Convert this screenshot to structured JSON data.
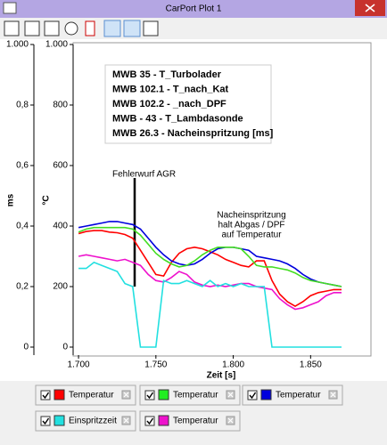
{
  "window": {
    "title": "CarPort Plot 1"
  },
  "chart_data": {
    "type": "line",
    "legend": "top-left",
    "y_label": "°C",
    "y2_label": "ms",
    "x_label": "Zeit [s]",
    "annotations": [
      {
        "lines": [
          "Fehlerwurf AGR"
        ]
      },
      {
        "lines": [
          "Nacheinspritzung",
          "halt Abgas / DPF",
          "auf Temperatur"
        ]
      }
    ],
    "xlim": [
      1.6965,
      1.889
    ],
    "xticks": [
      {
        "value": 1.7,
        "label": "1.700"
      },
      {
        "value": 1.75,
        "label": "1.750"
      },
      {
        "value": 1.8,
        "label": "1.800"
      },
      {
        "value": 1.85,
        "label": "1.850"
      }
    ],
    "ylim": [
      -25,
      1000
    ],
    "yticks": [
      0,
      200,
      400,
      600,
      800,
      {
        "value": 1000,
        "label": "1.000"
      }
    ],
    "y2lim": [
      -0.025,
      1.0
    ],
    "y2ticks": [
      0,
      {
        "value": 0.2,
        "label": "0,2"
      },
      {
        "value": 0.4,
        "label": "0,4"
      },
      {
        "value": 0.6,
        "label": "0,6"
      },
      {
        "value": 0.8,
        "label": "0,8"
      },
      {
        "value": 1,
        "label": "1.000"
      }
    ],
    "x": [
      1.7,
      1.705,
      1.71,
      1.715,
      1.72,
      1.725,
      1.73,
      1.735,
      1.74,
      1.745,
      1.75,
      1.755,
      1.76,
      1.765,
      1.77,
      1.775,
      1.78,
      1.785,
      1.79,
      1.795,
      1.8,
      1.805,
      1.81,
      1.815,
      1.82,
      1.825,
      1.83,
      1.835,
      1.84,
      1.845,
      1.85,
      1.855,
      1.86,
      1.865,
      1.87
    ],
    "series": [
      {
        "name": "MWB 35 - T_Turbolader",
        "color": "#ff0000",
        "values": [
          375,
          382,
          385,
          385,
          380,
          378,
          372,
          360,
          320,
          280,
          240,
          235,
          280,
          310,
          325,
          330,
          325,
          315,
          305,
          290,
          280,
          270,
          265,
          285,
          285,
          220,
          175,
          150,
          135,
          150,
          170,
          180,
          185,
          190,
          190
        ]
      },
      {
        "name": "MWB 102.1 - T_nach_Kat",
        "color": "#0000dd",
        "values": [
          395,
          400,
          405,
          410,
          415,
          415,
          410,
          405,
          390,
          360,
          330,
          305,
          285,
          275,
          270,
          275,
          290,
          310,
          325,
          330,
          330,
          325,
          320,
          300,
          295,
          290,
          285,
          275,
          260,
          240,
          225,
          215,
          210,
          205,
          200
        ]
      },
      {
        "name": "MWB 102.2 - _nach_DPF",
        "color": "#44dd22",
        "values": [
          380,
          390,
          395,
          395,
          395,
          395,
          395,
          390,
          370,
          340,
          310,
          290,
          275,
          265,
          270,
          285,
          305,
          320,
          330,
          330,
          330,
          325,
          300,
          270,
          265,
          265,
          260,
          255,
          245,
          230,
          220,
          215,
          210,
          205,
          200
        ]
      },
      {
        "name": "MWB - 43  - T_Lambdasonde",
        "color": "#ee11cc",
        "values": [
          300,
          305,
          300,
          295,
          290,
          285,
          290,
          280,
          270,
          240,
          220,
          215,
          230,
          250,
          240,
          215,
          205,
          200,
          205,
          200,
          205,
          210,
          210,
          200,
          195,
          190,
          160,
          140,
          125,
          130,
          140,
          150,
          170,
          180,
          180
        ]
      },
      {
        "name": "MWB 26.3 - Nacheinspritzung [ms]",
        "color": "#22e0e0",
        "axis": "y2",
        "values": [
          0.26,
          0.26,
          0.28,
          0.27,
          0.26,
          0.25,
          0.21,
          0.2,
          0,
          0,
          0,
          0.22,
          0.21,
          0.21,
          0.22,
          0.21,
          0.2,
          0.22,
          0.2,
          0.21,
          0.2,
          0.21,
          0.2,
          0.2,
          0.2,
          0,
          0,
          0,
          0,
          0,
          0,
          0,
          0,
          0,
          0
        ]
      }
    ]
  },
  "channels": [
    {
      "label": "Temperatur",
      "color": "#ff0000"
    },
    {
      "label": "Temperatur",
      "color": "#22ee22"
    },
    {
      "label": "Temperatur",
      "color": "#0000dd"
    },
    {
      "label": "Einspritzzeit",
      "color": "#22e0e0"
    },
    {
      "label": "Temperatur",
      "color": "#ee11cc"
    }
  ]
}
